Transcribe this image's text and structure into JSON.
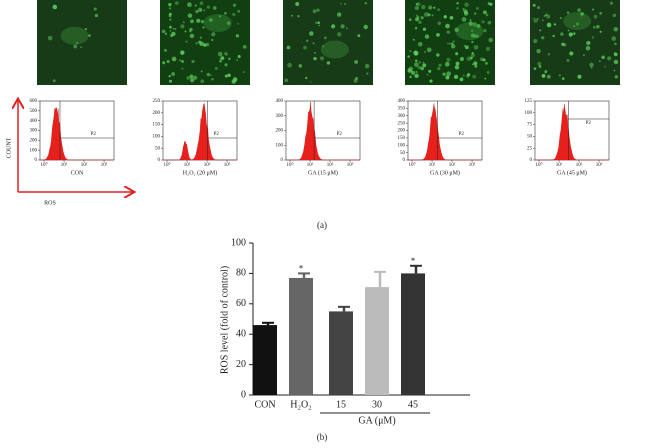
{
  "panel_a": {
    "label": "(a)",
    "axis_y": "COUNT",
    "axis_x": "ROS",
    "histograms": [
      {
        "caption": "CON",
        "gate": "P2",
        "yticks": [
          0,
          100,
          200,
          300,
          400,
          500,
          600
        ],
        "xticks": [
          {
            "value": 0,
            "label": "10⁰"
          },
          {
            "value": 1,
            "label": "10¹"
          },
          {
            "value": 2,
            "label": "10²"
          },
          {
            "value": 3,
            "label": "10³"
          }
        ]
      },
      {
        "caption": "H₂O₂ (20 μM)",
        "gate": "P2",
        "yticks": [
          0,
          50,
          100,
          150,
          200,
          250
        ],
        "xticks": [
          {
            "value": 0,
            "label": "10⁰"
          },
          {
            "value": 1,
            "label": "10¹"
          },
          {
            "value": 2,
            "label": "10²"
          },
          {
            "value": 3,
            "label": "10³"
          }
        ]
      },
      {
        "caption": "GA (15 μM)",
        "gate": "P2",
        "yticks": [
          0,
          100,
          200,
          300,
          400
        ],
        "xticks": [
          {
            "value": 0,
            "label": "10⁰"
          },
          {
            "value": 1,
            "label": "10¹"
          },
          {
            "value": 2,
            "label": "10²"
          },
          {
            "value": 3,
            "label": "10³"
          }
        ]
      },
      {
        "caption": "GA (30 μM)",
        "gate": "P2",
        "yticks": [
          0,
          50,
          100,
          150,
          200,
          250,
          300,
          350,
          400
        ],
        "xticks": [
          {
            "value": 0,
            "label": "10⁰"
          },
          {
            "value": 1,
            "label": "10¹"
          },
          {
            "value": 2,
            "label": "10²"
          },
          {
            "value": 3,
            "label": "10³"
          }
        ]
      },
      {
        "caption": "GA (45 μM)",
        "gate": "P2",
        "yticks": [
          0,
          25,
          50,
          75,
          100,
          125
        ],
        "xticks": [
          {
            "value": 0,
            "label": "10⁰"
          },
          {
            "value": 1,
            "label": "10¹"
          },
          {
            "value": 2,
            "label": "10²"
          },
          {
            "value": 3,
            "label": "10³"
          }
        ]
      }
    ]
  },
  "chart_data": {
    "type": "bar",
    "panel_label": "(b)",
    "ylabel": "ROS level (fold of control)",
    "group_label": "GA (μM)",
    "categories": [
      "CON",
      "H₂O₂",
      "15",
      "30",
      "45"
    ],
    "values": [
      46,
      77,
      55,
      71,
      80
    ],
    "errors": [
      1.5,
      3,
      3,
      10,
      5
    ],
    "colors": [
      "#111111",
      "#666666",
      "#444444",
      "#bbbbbb",
      "#333333"
    ],
    "annotations": [
      null,
      "*",
      null,
      null,
      "*"
    ],
    "ylim": [
      0,
      100
    ],
    "yticks": [
      0,
      20,
      40,
      60,
      80,
      100
    ]
  }
}
